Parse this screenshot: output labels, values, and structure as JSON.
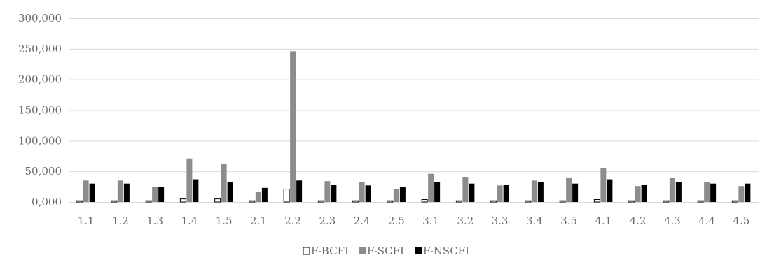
{
  "chart_data": {
    "type": "bar",
    "title": "",
    "xlabel": "",
    "ylabel": "",
    "ylim": [
      0,
      300000
    ],
    "y_ticks": [
      0,
      50000,
      100000,
      150000,
      200000,
      250000,
      300000
    ],
    "y_tick_labels": [
      "0,000",
      "50,000",
      "100,000",
      "150,000",
      "200,000",
      "250,000",
      "300,000"
    ],
    "grid": true,
    "legend_position": "bottom",
    "categories": [
      "1.1",
      "1.2",
      "1.3",
      "1.4",
      "1.5",
      "2.1",
      "2.2",
      "2.3",
      "2.4",
      "2.5",
      "3.1",
      "3.2",
      "3.3",
      "3.4",
      "3.5",
      "4.1",
      "4.2",
      "4.3",
      "4.4",
      "4.5"
    ],
    "series": [
      {
        "name": "F-BCFI",
        "fill": "#ffffff",
        "stroke": "#000000",
        "values": [
          2000,
          2000,
          2000,
          5000,
          5000,
          2000,
          21000,
          2000,
          2000,
          2000,
          4000,
          2000,
          2000,
          2000,
          2000,
          4000,
          2000,
          2000,
          2000,
          2000
        ]
      },
      {
        "name": "F-SCFI",
        "fill": "#8c8c8c",
        "stroke": "#8c8c8c",
        "values": [
          35000,
          35000,
          24000,
          71000,
          62000,
          16000,
          246000,
          34000,
          32000,
          21000,
          46000,
          41000,
          27000,
          35000,
          40000,
          55000,
          26000,
          40000,
          32000,
          26000
        ]
      },
      {
        "name": "F-NSCFI",
        "fill": "#000000",
        "stroke": "#000000",
        "values": [
          30000,
          30000,
          25000,
          37000,
          32000,
          23000,
          35000,
          28000,
          27000,
          25000,
          32000,
          30000,
          28000,
          32000,
          30000,
          37000,
          28000,
          32000,
          30000,
          30000
        ]
      }
    ]
  }
}
